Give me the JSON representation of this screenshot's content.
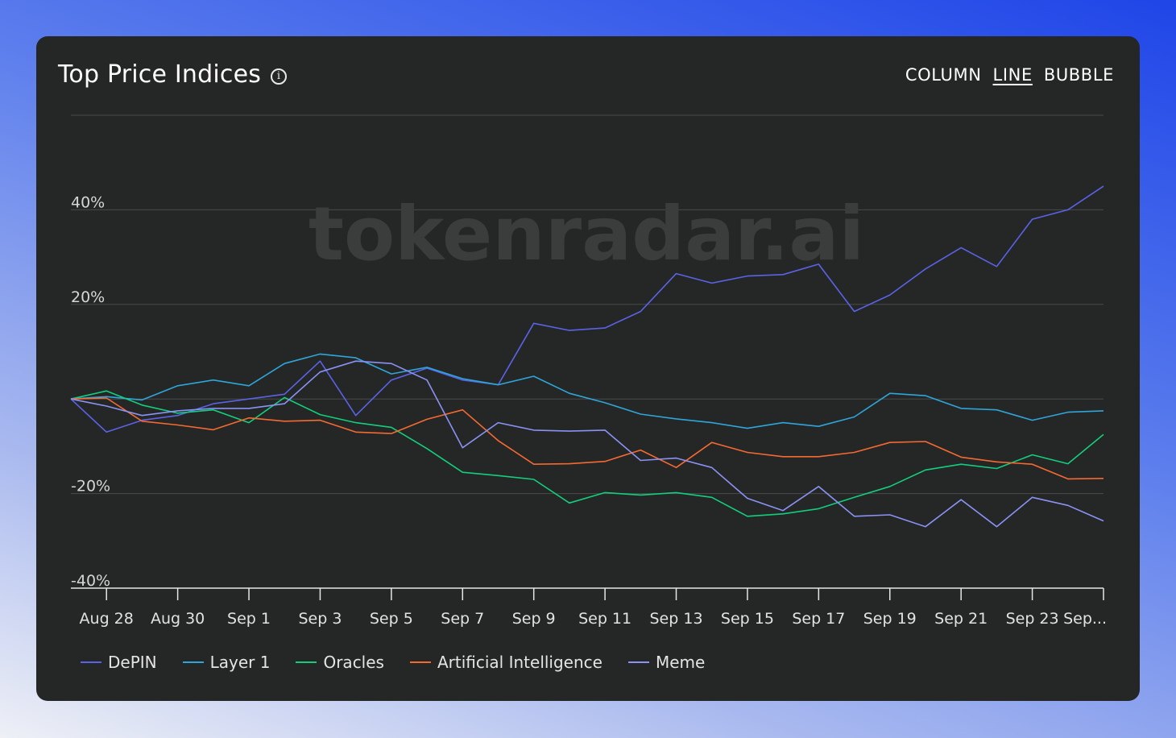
{
  "header": {
    "title": "Top Price Indices",
    "info_icon": "info-icon",
    "modes": [
      "COLUMN",
      "LINE",
      "BUBBLE"
    ],
    "active_mode": "LINE"
  },
  "watermark": "tokenradar.ai",
  "chart_data": {
    "type": "line",
    "title": "Top Price Indices",
    "ylim": [
      -40,
      60
    ],
    "yticks": [
      -40,
      -20,
      20,
      40
    ],
    "ytick_labels": [
      "-40%",
      "-20%",
      "20%",
      "40%"
    ],
    "x_tick_labels": [
      "Aug 28",
      "Aug 30",
      "Sep 1",
      "Sep 3",
      "Sep 5",
      "Sep 7",
      "Sep 9",
      "Sep 11",
      "Sep 13",
      "Sep 15",
      "Sep 17",
      "Sep 19",
      "Sep 21",
      "Sep 23",
      "Sep..."
    ],
    "x": [
      "Aug 27",
      "Aug 28",
      "Aug 29",
      "Aug 30",
      "Aug 31",
      "Sep 1",
      "Sep 2",
      "Sep 3",
      "Sep 4",
      "Sep 5",
      "Sep 6",
      "Sep 7",
      "Sep 8",
      "Sep 9",
      "Sep 10",
      "Sep 11",
      "Sep 12",
      "Sep 13",
      "Sep 14",
      "Sep 15",
      "Sep 16",
      "Sep 17",
      "Sep 18",
      "Sep 19",
      "Sep 20",
      "Sep 21",
      "Sep 22",
      "Sep 23",
      "Sep 24",
      "Sep 25"
    ],
    "grid": true,
    "legend_position": "bottom-left",
    "series": [
      {
        "name": "DePIN",
        "color": "#5a63e6",
        "values": [
          0,
          -7,
          -4.5,
          -3.5,
          -1,
          0,
          1,
          8,
          -3.5,
          4,
          6.5,
          4,
          3,
          16,
          14.5,
          15,
          18.5,
          26.5,
          24.5,
          26,
          26.3,
          28.5,
          18.5,
          22,
          27.5,
          32,
          28,
          38,
          40,
          45
        ]
      },
      {
        "name": "Layer 1",
        "color": "#2ea6d9",
        "values": [
          0,
          0.5,
          -0.2,
          2.8,
          4,
          2.8,
          7.5,
          9.5,
          8.7,
          5.3,
          6.7,
          4.3,
          3,
          4.8,
          1.2,
          -0.8,
          -3.2,
          -4.2,
          -5,
          -6.2,
          -5,
          -5.8,
          -3.8,
          1.2,
          0.7,
          -2,
          -2.3,
          -4.5,
          -2.8,
          -2.5
        ]
      },
      {
        "name": "Oracles",
        "color": "#13cf7d",
        "values": [
          0,
          1.7,
          -1.3,
          -3,
          -2.3,
          -5,
          0.3,
          -3.3,
          -5,
          -6,
          -10.5,
          -15.5,
          -16.2,
          -17,
          -22,
          -19.8,
          -20.3,
          -19.8,
          -20.8,
          -24.8,
          -24.3,
          -23.2,
          -20.8,
          -18.5,
          -15,
          -13.8,
          -14.7,
          -11.8,
          -13.7,
          -7.5
        ]
      },
      {
        "name": "Artificial Intelligence",
        "color": "#f46a31",
        "values": [
          0,
          0.2,
          -4.7,
          -5.5,
          -6.5,
          -4,
          -4.7,
          -4.5,
          -7,
          -7.3,
          -4.3,
          -2.3,
          -8.8,
          -13.8,
          -13.7,
          -13.2,
          -10.8,
          -14.5,
          -9.2,
          -11.3,
          -12.2,
          -12.2,
          -11.3,
          -9.2,
          -9,
          -12.3,
          -13.3,
          -13.8,
          -16.9,
          -16.8
        ]
      },
      {
        "name": "Meme",
        "color": "#8a92f4",
        "values": [
          0,
          -1.5,
          -3.5,
          -2.5,
          -2,
          -2,
          -1,
          5.7,
          8,
          7.5,
          4,
          -10.3,
          -5,
          -6.6,
          -6.8,
          -6.6,
          -13,
          -12.5,
          -14.5,
          -21,
          -23.6,
          -18.5,
          -24.8,
          -24.5,
          -27,
          -21.3,
          -27,
          -20.8,
          -22.5,
          -25.8
        ]
      }
    ]
  }
}
